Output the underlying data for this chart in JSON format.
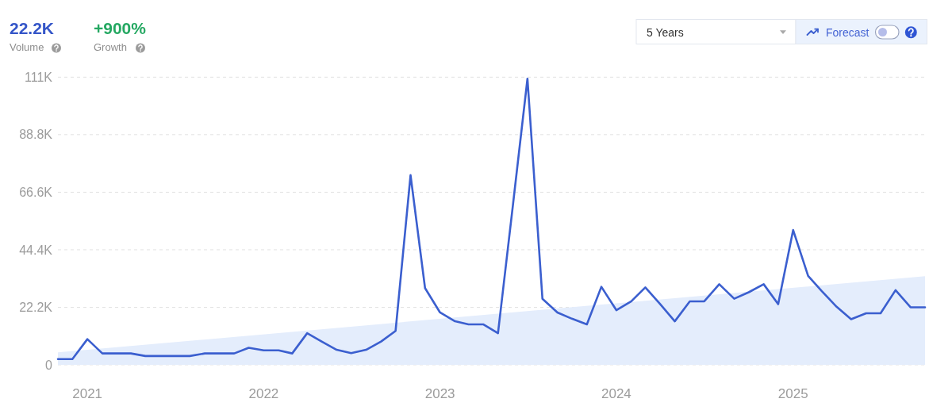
{
  "chart_data": {
    "type": "line",
    "annotations": [
      "22.2K",
      "Volume",
      "+900%",
      "Growth",
      "5 Years",
      "Forecast"
    ],
    "x": [
      "2020-11",
      "2020-12",
      "2021-01",
      "2021-02",
      "2021-03",
      "2021-04",
      "2021-05",
      "2021-06",
      "2021-07",
      "2021-08",
      "2021-09",
      "2021-10",
      "2021-11",
      "2021-12",
      "2022-01",
      "2022-02",
      "2022-03",
      "2022-04",
      "2022-05",
      "2022-06",
      "2022-07",
      "2022-08",
      "2022-09",
      "2022-10",
      "2022-11",
      "2022-12",
      "2023-01",
      "2023-02",
      "2023-03",
      "2023-04",
      "2023-05",
      "2023-06",
      "2023-07",
      "2023-08",
      "2023-09",
      "2023-10",
      "2023-11",
      "2023-12",
      "2024-01",
      "2024-02",
      "2024-03",
      "2024-04",
      "2024-05",
      "2024-06",
      "2024-07",
      "2024-08",
      "2024-09",
      "2024-10",
      "2024-11",
      "2024-12",
      "2025-01",
      "2025-02",
      "2025-03",
      "2025-04",
      "2025-05",
      "2025-06",
      "2025-07",
      "2025-08",
      "2025-09",
      "2025-10"
    ],
    "series": [
      {
        "type": "area",
        "color": "#e4edfc",
        "x": [
          "2020-11",
          "2025-10"
        ],
        "values": [
          4800,
          34200
        ]
      },
      {
        "color": "#3b5fcf",
        "values": [
          2200,
          2200,
          9900,
          4400,
          4400,
          4400,
          3400,
          3400,
          3400,
          3400,
          4400,
          4400,
          4400,
          6600,
          5600,
          5600,
          4400,
          12200,
          9000,
          5800,
          4500,
          5800,
          9000,
          13100,
          73200,
          29600,
          20200,
          16800,
          15600,
          15600,
          12200,
          61800,
          110400,
          25500,
          20200,
          17800,
          15600,
          30100,
          21100,
          24500,
          29900,
          23400,
          16800,
          24500,
          24500,
          31100,
          25500,
          28000,
          31100,
          23400,
          52000,
          34300,
          28500,
          22400,
          17600,
          19900,
          19900,
          28800,
          22200,
          22200
        ]
      }
    ],
    "xlim": [
      "2020-11",
      "2025-10"
    ],
    "xticks": [
      "2021",
      "2022",
      "2023",
      "2024",
      "2025"
    ],
    "ylim": [
      0,
      111000
    ],
    "yticks": [
      0,
      {
        "value": 22200,
        "label": "22.2K"
      },
      {
        "value": 44400,
        "label": "44.4K"
      },
      {
        "value": 66600,
        "label": "66.6K"
      },
      {
        "value": 88800,
        "label": "88.8K"
      },
      {
        "value": 111000,
        "label": "111K"
      }
    ],
    "grid": "y"
  }
}
